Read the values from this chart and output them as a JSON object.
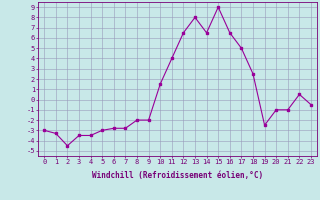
{
  "x": [
    0,
    1,
    2,
    3,
    4,
    5,
    6,
    7,
    8,
    9,
    10,
    11,
    12,
    13,
    14,
    15,
    16,
    17,
    18,
    19,
    20,
    21,
    22,
    23
  ],
  "y": [
    -3,
    -3.3,
    -4.5,
    -3.5,
    -3.5,
    -3,
    -2.8,
    -2.8,
    -2,
    -2,
    1.5,
    4,
    6.5,
    8,
    6.5,
    9,
    6.5,
    5,
    2.5,
    -2.5,
    -1,
    -1,
    0.5,
    -0.5
  ],
  "line_color": "#990099",
  "bg_color": "#c8e8e8",
  "grid_color": "#9999bb",
  "xlabel": "Windchill (Refroidissement éolien,°C)",
  "ytick_vals": [
    -5,
    -4,
    -3,
    -2,
    -1,
    0,
    1,
    2,
    3,
    4,
    5,
    6,
    7,
    8,
    9
  ],
  "ylim": [
    -5.5,
    9.5
  ],
  "xlim": [
    -0.5,
    23.5
  ],
  "tick_color": "#770077",
  "label_fontsize": 5.0,
  "xlabel_fontsize": 5.5
}
